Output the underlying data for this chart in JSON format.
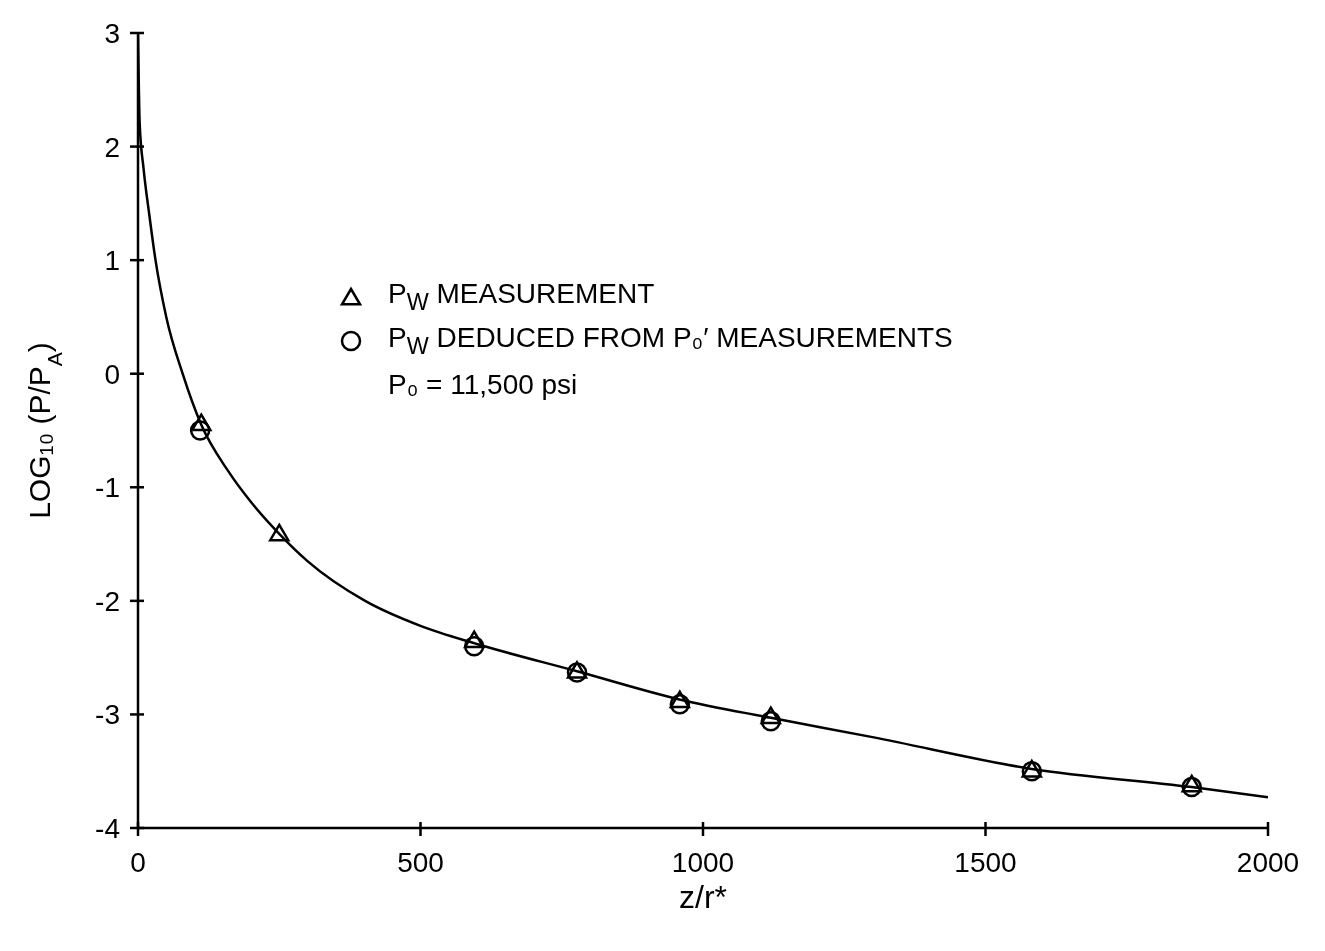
{
  "chart_data": {
    "type": "scatter",
    "xlabel": "z/r*",
    "ylabel": "LOG₁₀ (P/P$_{A}$)",
    "xlim": [
      0,
      2000
    ],
    "xticks": [
      0,
      500,
      1000,
      1500,
      2000
    ],
    "ylim": [
      -4,
      3
    ],
    "yticks": [
      -4,
      -3,
      -2,
      -1,
      0,
      1,
      2,
      3
    ],
    "grid": false,
    "legend": "top",
    "annotations": [
      "P₀ = 11,500 psi"
    ],
    "series": [
      {
        "name": "P$_{W}$ MEASUREMENT",
        "marker": "triangle",
        "color": "#000000",
        "x": [
          112,
          250,
          595,
          777,
          959,
          1120,
          1582,
          1865
        ],
        "values": [
          -0.44,
          -1.41,
          -2.35,
          -2.62,
          -2.88,
          -3.02,
          -3.49,
          -3.62
        ]
      },
      {
        "name": "P$_{W}$ DEDUCED FROM P₀′ MEASUREMENTS",
        "marker": "circle",
        "color": "#000000",
        "x": [
          110,
          595,
          777,
          959,
          1120,
          1582,
          1865
        ],
        "values": [
          -0.5,
          -2.4,
          -2.63,
          -2.91,
          -3.06,
          -3.5,
          -3.64
        ]
      },
      {
        "type": "line",
        "marker": "none",
        "line_style": "solid",
        "color": "#000000",
        "x": [
          0,
          3,
          10,
          20,
          31,
          50,
          79,
          112,
          160,
          200,
          250,
          300,
          402,
          500,
          600,
          777,
          960,
          1120,
          1300,
          1582,
          1865,
          2000
        ],
        "values": [
          3,
          2.2,
          1.8,
          1.4,
          1,
          0.5,
          0,
          -0.45,
          -0.86,
          -1.13,
          -1.41,
          -1.65,
          -2,
          -2.22,
          -2.38,
          -2.62,
          -2.87,
          -3.03,
          -3.2,
          -3.48,
          -3.64,
          -3.73
        ]
      }
    ]
  }
}
